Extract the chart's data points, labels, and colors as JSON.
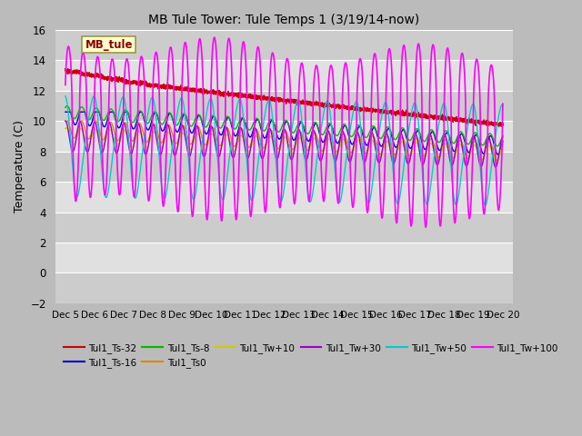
{
  "title": "MB Tule Tower: Tule Temps 1 (3/19/14-now)",
  "ylabel": "Temperature (C)",
  "xlim_days": [
    4.65,
    20.35
  ],
  "ylim": [
    -2,
    16
  ],
  "yticks": [
    -2,
    0,
    2,
    4,
    6,
    8,
    10,
    12,
    14,
    16
  ],
  "xtick_labels": [
    "Dec 5",
    "Dec 6",
    "Dec 7",
    "Dec 8",
    "Dec 9",
    "Dec 10",
    "Dec 11",
    "Dec 12",
    "Dec 13",
    "Dec 14",
    "Dec 15",
    "Dec 16",
    "Dec 17",
    "Dec 18",
    "Dec 19",
    "Dec 20"
  ],
  "xtick_positions": [
    5,
    6,
    7,
    8,
    9,
    10,
    11,
    12,
    13,
    14,
    15,
    16,
    17,
    18,
    19,
    20
  ],
  "plot_bg_color": "#dddddd",
  "band_light": "#cccccc",
  "band_dark": "#e8e8e8",
  "series": {
    "Tul1_Ts-32": {
      "color": "#cc0000",
      "lw": 1.0
    },
    "Tul1_Ts-16": {
      "color": "#0000cc",
      "lw": 1.0
    },
    "Tul1_Ts-8": {
      "color": "#00bb00",
      "lw": 1.0
    },
    "Tul1_Ts0": {
      "color": "#dd8800",
      "lw": 1.0
    },
    "Tul1_Tw+10": {
      "color": "#cccc00",
      "lw": 1.0
    },
    "Tul1_Tw+30": {
      "color": "#9900cc",
      "lw": 1.0
    },
    "Tul1_Tw+50": {
      "color": "#00cccc",
      "lw": 1.0
    },
    "Tul1_Tw+100": {
      "color": "#ff00ff",
      "lw": 1.2
    }
  },
  "legend_box": {
    "text": "MB_tule",
    "bg": "#ffffcc",
    "edge": "#999944",
    "text_color": "#880000"
  },
  "legend_items": [
    [
      "Tul1_Ts-32",
      "#cc0000"
    ],
    [
      "Tul1_Ts-16",
      "#0000cc"
    ],
    [
      "Tul1_Ts-8",
      "#00bb00"
    ],
    [
      "Tul1_Ts0",
      "#dd8800"
    ],
    [
      "Tul1_Tw+10",
      "#cccc00"
    ],
    [
      "Tul1_Tw+30",
      "#9900cc"
    ],
    [
      "Tul1_Tw+50",
      "#00cccc"
    ],
    [
      "Tul1_Tw+100",
      "#ff00ff"
    ]
  ]
}
